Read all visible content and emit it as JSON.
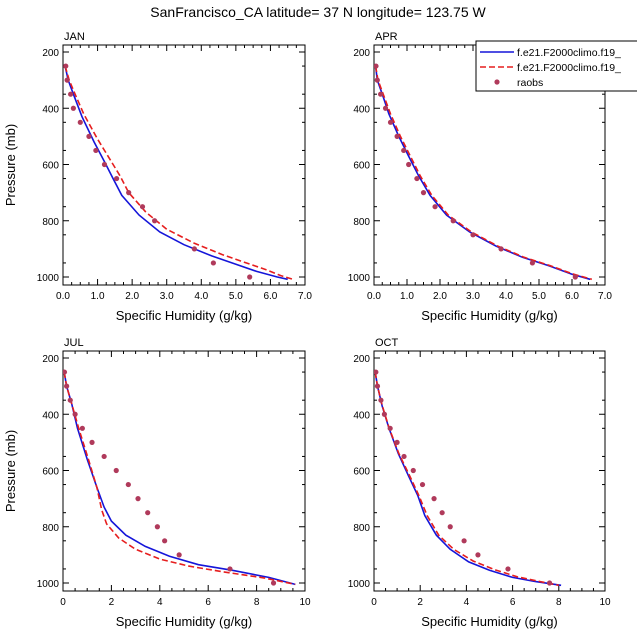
{
  "title": "SanFrancisco_CA  latitude= 37 N longitude= 123.75 W",
  "colors": {
    "model1": "#1515d9",
    "model2": "#e61e1e",
    "raobs": "#b03a5b"
  },
  "legend": {
    "placement": "top-right (in APR panel)",
    "items": [
      {
        "label": "f.e21.F2000climo.f19_",
        "style": "solid",
        "color": "#1515d9"
      },
      {
        "label": "f.e21.F2000climo.f19_",
        "style": "dashed",
        "color": "#e61e1e"
      },
      {
        "label": "raobs",
        "style": "marker",
        "color": "#b03a5b"
      }
    ]
  },
  "chart_data": [
    {
      "type": "line",
      "month": "JAN",
      "xlabel": "Specific Humidity (g/kg)",
      "ylabel": "Pressure (mb)",
      "xlim": [
        0,
        7
      ],
      "ylim": [
        1000,
        200
      ],
      "yreversed": true,
      "xticks": [
        "0.0",
        "1.0",
        "2.0",
        "3.0",
        "4.0",
        "5.0",
        "6.0",
        "7.0"
      ],
      "yticks": [
        "200",
        "400",
        "600",
        "800",
        "1000"
      ],
      "series": [
        {
          "name": "f.e21.F2000climo.f19_",
          "style": "solid",
          "points": [
            [
              0.06,
              250
            ],
            [
              0.15,
              300
            ],
            [
              0.3,
              350
            ],
            [
              0.55,
              430
            ],
            [
              0.9,
              520
            ],
            [
              1.2,
              590
            ],
            [
              1.45,
              650
            ],
            [
              1.7,
              710
            ],
            [
              2.2,
              780
            ],
            [
              2.8,
              840
            ],
            [
              3.5,
              885
            ],
            [
              4.3,
              925
            ],
            [
              5.0,
              955
            ],
            [
              5.6,
              980
            ],
            [
              6.2,
              1000
            ],
            [
              6.5,
              1008
            ]
          ]
        },
        {
          "name": "f.e21.F2000climo.f19_",
          "style": "dashed",
          "points": [
            [
              0.06,
              250
            ],
            [
              0.18,
              300
            ],
            [
              0.35,
              350
            ],
            [
              0.6,
              420
            ],
            [
              1.0,
              510
            ],
            [
              1.35,
              580
            ],
            [
              1.65,
              640
            ],
            [
              1.9,
              700
            ],
            [
              2.4,
              770
            ],
            [
              3.0,
              830
            ],
            [
              3.8,
              880
            ],
            [
              4.6,
              920
            ],
            [
              5.3,
              950
            ],
            [
              5.9,
              975
            ],
            [
              6.3,
              995
            ],
            [
              6.65,
              1008
            ]
          ]
        }
      ],
      "raobs": [
        [
          0.08,
          250
        ],
        [
          0.12,
          300
        ],
        [
          0.22,
          350
        ],
        [
          0.3,
          400
        ],
        [
          0.5,
          450
        ],
        [
          0.75,
          500
        ],
        [
          0.95,
          550
        ],
        [
          1.2,
          600
        ],
        [
          1.55,
          650
        ],
        [
          1.9,
          700
        ],
        [
          2.3,
          750
        ],
        [
          2.65,
          800
        ],
        [
          3.8,
          900
        ],
        [
          4.35,
          950
        ],
        [
          5.4,
          1000
        ]
      ]
    },
    {
      "type": "line",
      "month": "APR",
      "xlabel": "Specific Humidity (g/kg)",
      "ylabel": "",
      "xlim": [
        0,
        7
      ],
      "ylim": [
        1000,
        200
      ],
      "yreversed": true,
      "xticks": [
        "0.0",
        "1.0",
        "2.0",
        "3.0",
        "4.0",
        "5.0",
        "6.0",
        "7.0"
      ],
      "yticks": [
        "200",
        "400",
        "600",
        "800",
        "1000"
      ],
      "series": [
        {
          "name": "f.e21.F2000climo.f19_",
          "style": "solid",
          "points": [
            [
              0.05,
              250
            ],
            [
              0.1,
              300
            ],
            [
              0.25,
              350
            ],
            [
              0.45,
              420
            ],
            [
              0.75,
              500
            ],
            [
              1.05,
              570
            ],
            [
              1.35,
              640
            ],
            [
              1.7,
              710
            ],
            [
              2.2,
              780
            ],
            [
              2.9,
              840
            ],
            [
              3.7,
              890
            ],
            [
              4.5,
              930
            ],
            [
              5.3,
              960
            ],
            [
              6.0,
              990
            ],
            [
              6.55,
              1008
            ]
          ]
        },
        {
          "name": "f.e21.F2000climo.f19_",
          "style": "dashed",
          "points": [
            [
              0.05,
              250
            ],
            [
              0.12,
              300
            ],
            [
              0.28,
              350
            ],
            [
              0.5,
              420
            ],
            [
              0.8,
              500
            ],
            [
              1.1,
              570
            ],
            [
              1.4,
              640
            ],
            [
              1.75,
              710
            ],
            [
              2.25,
              780
            ],
            [
              2.95,
              840
            ],
            [
              3.75,
              890
            ],
            [
              4.55,
              930
            ],
            [
              5.35,
              960
            ],
            [
              6.05,
              990
            ],
            [
              6.6,
              1008
            ]
          ]
        }
      ],
      "raobs": [
        [
          0.06,
          250
        ],
        [
          0.1,
          300
        ],
        [
          0.2,
          350
        ],
        [
          0.35,
          400
        ],
        [
          0.5,
          450
        ],
        [
          0.7,
          500
        ],
        [
          0.9,
          550
        ],
        [
          1.05,
          600
        ],
        [
          1.3,
          650
        ],
        [
          1.5,
          700
        ],
        [
          1.85,
          750
        ],
        [
          2.4,
          800
        ],
        [
          3.0,
          850
        ],
        [
          3.85,
          900
        ],
        [
          4.8,
          950
        ],
        [
          6.1,
          1000
        ]
      ]
    },
    {
      "type": "line",
      "month": "JUL",
      "xlabel": "Specific Humidity (g/kg)",
      "ylabel": "Pressure (mb)",
      "xlim": [
        0,
        10
      ],
      "ylim": [
        1000,
        200
      ],
      "yreversed": true,
      "xticks": [
        "0",
        "2",
        "4",
        "6",
        "8",
        "10"
      ],
      "yticks": [
        "200",
        "400",
        "600",
        "800",
        "1000"
      ],
      "series": [
        {
          "name": "f.e21.F2000climo.f19_",
          "style": "solid",
          "points": [
            [
              0.05,
              250
            ],
            [
              0.15,
              300
            ],
            [
              0.35,
              360
            ],
            [
              0.6,
              450
            ],
            [
              1.0,
              560
            ],
            [
              1.4,
              660
            ],
            [
              1.7,
              730
            ],
            [
              2.0,
              780
            ],
            [
              2.6,
              830
            ],
            [
              3.4,
              870
            ],
            [
              4.4,
              905
            ],
            [
              5.6,
              935
            ],
            [
              7.0,
              955
            ],
            [
              8.5,
              980
            ],
            [
              9.6,
              1005
            ]
          ]
        },
        {
          "name": "f.e21.F2000climo.f19_",
          "style": "dashed",
          "points": [
            [
              0.05,
              250
            ],
            [
              0.15,
              300
            ],
            [
              0.35,
              360
            ],
            [
              0.65,
              450
            ],
            [
              1.05,
              560
            ],
            [
              1.4,
              660
            ],
            [
              1.6,
              740
            ],
            [
              1.8,
              790
            ],
            [
              2.3,
              840
            ],
            [
              3.0,
              880
            ],
            [
              4.0,
              915
            ],
            [
              5.2,
              940
            ],
            [
              6.6,
              960
            ],
            [
              8.3,
              982
            ],
            [
              9.6,
              1005
            ]
          ]
        }
      ],
      "raobs": [
        [
          0.06,
          250
        ],
        [
          0.15,
          300
        ],
        [
          0.3,
          350
        ],
        [
          0.5,
          400
        ],
        [
          0.8,
          450
        ],
        [
          1.2,
          500
        ],
        [
          1.7,
          550
        ],
        [
          2.2,
          600
        ],
        [
          2.7,
          650
        ],
        [
          3.1,
          700
        ],
        [
          3.5,
          750
        ],
        [
          3.9,
          800
        ],
        [
          4.2,
          850
        ],
        [
          4.8,
          900
        ],
        [
          6.9,
          950
        ],
        [
          8.7,
          1000
        ]
      ]
    },
    {
      "type": "line",
      "month": "OCT",
      "xlabel": "Specific Humidity (g/kg)",
      "ylabel": "",
      "xlim": [
        0,
        10
      ],
      "ylim": [
        1000,
        200
      ],
      "yreversed": true,
      "xticks": [
        "0",
        "2",
        "4",
        "6",
        "8",
        "10"
      ],
      "yticks": [
        "200",
        "400",
        "600",
        "800",
        "1000"
      ],
      "series": [
        {
          "name": "f.e21.F2000climo.f19_",
          "style": "solid",
          "points": [
            [
              0.05,
              250
            ],
            [
              0.15,
              300
            ],
            [
              0.35,
              370
            ],
            [
              0.65,
              450
            ],
            [
              1.05,
              540
            ],
            [
              1.5,
              620
            ],
            [
              1.9,
              690
            ],
            [
              2.2,
              760
            ],
            [
              2.7,
              830
            ],
            [
              3.3,
              880
            ],
            [
              4.1,
              925
            ],
            [
              5.0,
              955
            ],
            [
              6.0,
              980
            ],
            [
              7.0,
              995
            ],
            [
              8.1,
              1008
            ]
          ]
        },
        {
          "name": "f.e21.F2000climo.f19_",
          "style": "dashed",
          "points": [
            [
              0.05,
              250
            ],
            [
              0.15,
              300
            ],
            [
              0.36,
              370
            ],
            [
              0.66,
              450
            ],
            [
              1.08,
              540
            ],
            [
              1.55,
              620
            ],
            [
              1.95,
              690
            ],
            [
              2.3,
              760
            ],
            [
              2.8,
              830
            ],
            [
              3.45,
              880
            ],
            [
              4.3,
              922
            ],
            [
              5.2,
              952
            ],
            [
              6.2,
              978
            ],
            [
              7.2,
              995
            ],
            [
              8.0,
              1008
            ]
          ]
        }
      ],
      "raobs": [
        [
          0.08,
          250
        ],
        [
          0.15,
          300
        ],
        [
          0.3,
          350
        ],
        [
          0.45,
          400
        ],
        [
          0.7,
          450
        ],
        [
          1.0,
          500
        ],
        [
          1.3,
          550
        ],
        [
          1.7,
          600
        ],
        [
          2.1,
          650
        ],
        [
          2.6,
          700
        ],
        [
          2.95,
          750
        ],
        [
          3.3,
          800
        ],
        [
          3.9,
          850
        ],
        [
          4.5,
          900
        ],
        [
          5.8,
          950
        ],
        [
          7.6,
          1000
        ]
      ]
    }
  ]
}
